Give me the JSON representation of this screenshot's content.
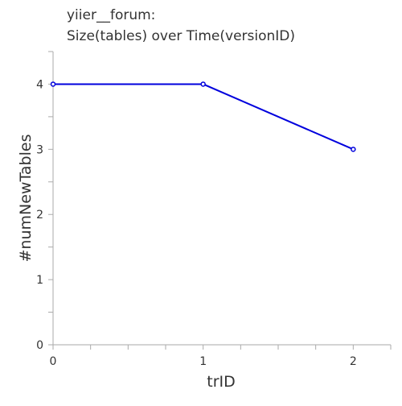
{
  "chart_data": {
    "type": "line",
    "title_lines": [
      "yiier__forum:",
      "Size(tables) over Time(versionID)"
    ],
    "xlabel": "trID",
    "ylabel": "#numNewTables",
    "x": [
      0,
      1,
      2
    ],
    "series": [
      {
        "values": [
          4,
          4,
          3
        ],
        "color": "#0000dd"
      }
    ],
    "xlim": [
      0,
      2.25
    ],
    "ylim": [
      0,
      4.5
    ],
    "xticks": [
      0,
      1,
      2
    ],
    "yticks": [
      0,
      1,
      2,
      3,
      4
    ],
    "grid": false,
    "legend": "none"
  }
}
